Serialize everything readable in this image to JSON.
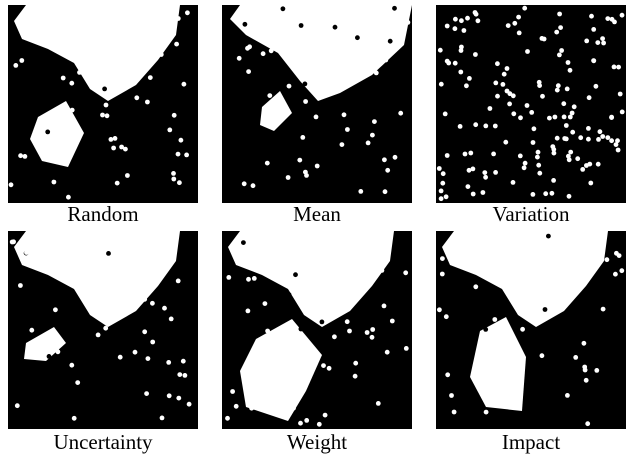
{
  "figure": {
    "panels": [
      {
        "caption": "Random"
      },
      {
        "caption": "Mean"
      },
      {
        "caption": "Variation"
      },
      {
        "caption": "Uncertainty"
      },
      {
        "caption": "Weight"
      },
      {
        "caption": "Impact"
      }
    ]
  }
}
